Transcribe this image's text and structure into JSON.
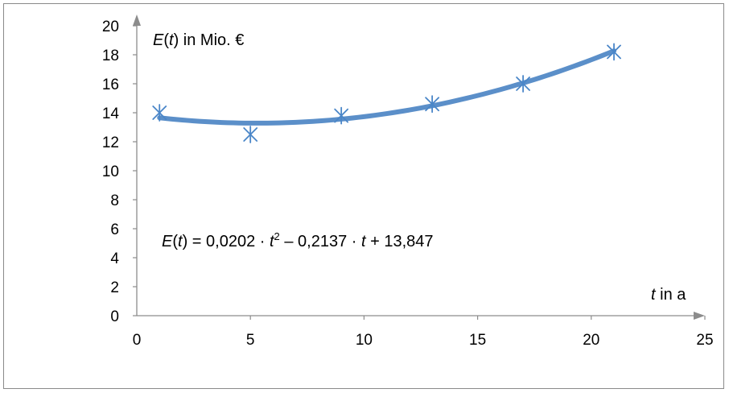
{
  "chart_data": {
    "type": "scatter",
    "x_axis": {
      "title_var": "t",
      "title_rest": " in a",
      "min": 0,
      "max": 25,
      "ticks": [
        0,
        5,
        10,
        15,
        20,
        25
      ]
    },
    "y_axis": {
      "title_fn": "E",
      "title_open": "(",
      "title_var": "t",
      "title_close": ")",
      "title_rest": " in Mio. €",
      "min": 0,
      "max": 20,
      "ticks": [
        0,
        2,
        4,
        6,
        8,
        10,
        12,
        14,
        16,
        18,
        20
      ]
    },
    "points": [
      {
        "x": 1,
        "y": 14.0
      },
      {
        "x": 5,
        "y": 12.5
      },
      {
        "x": 9,
        "y": 13.8
      },
      {
        "x": 13,
        "y": 14.6
      },
      {
        "x": 17,
        "y": 16.0
      },
      {
        "x": 21,
        "y": 18.2
      }
    ],
    "trendline": {
      "type": "polynomial",
      "coefficients": {
        "a": 0.0202,
        "b": -0.2137,
        "c": 13.847
      },
      "x_range": [
        1,
        21
      ],
      "equation": {
        "fn": "E",
        "var": "t",
        "p1": ") = 0,0202 · ",
        "exp": "2",
        "p2": " – 0,2137 · ",
        "p3": " + 13,847"
      }
    },
    "colors": {
      "marker": "#4a86c8",
      "trendline": "#5b8fc9",
      "axis": "#8c8c8c"
    },
    "grid": false,
    "legend": "none"
  }
}
